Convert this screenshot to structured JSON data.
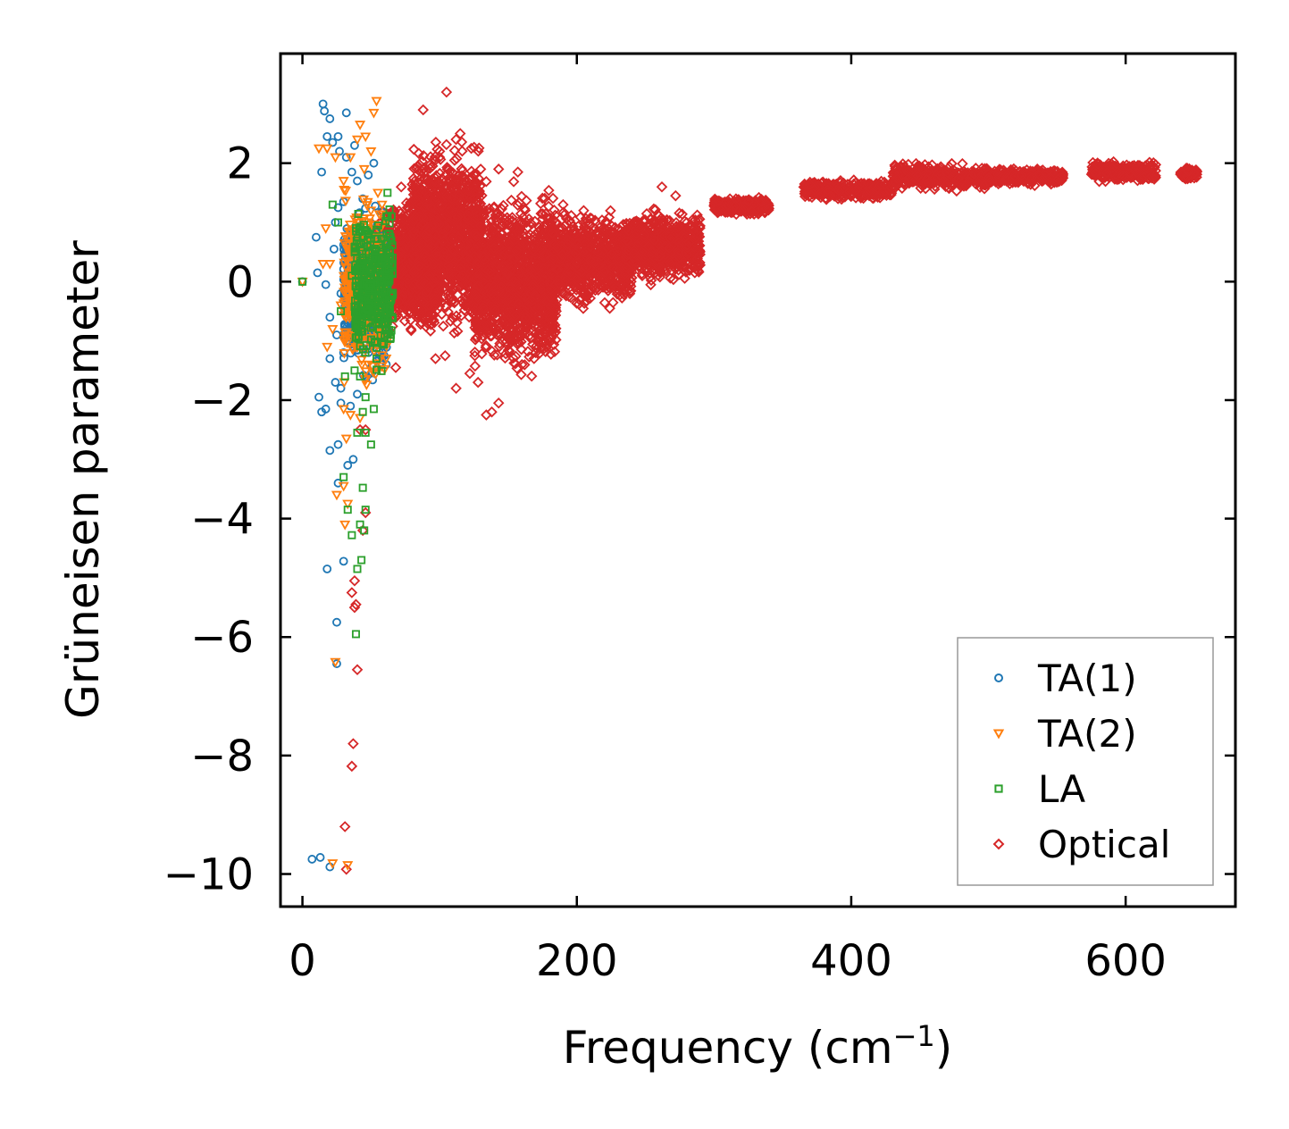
{
  "chart_data": {
    "type": "scatter",
    "title": "",
    "xlabel": "Frequency (cm",
    "xlabel_sup": "−1",
    "xlabel_suffix": ")",
    "ylabel": "Grüneisen parameter",
    "xlim": [
      -16,
      680
    ],
    "ylim": [
      -10.55,
      3.85
    ],
    "xticks": [
      0,
      200,
      400,
      600
    ],
    "xtick_labels": [
      "0",
      "200",
      "400",
      "600"
    ],
    "yticks": [
      2,
      0,
      -2,
      -4,
      -6,
      -8,
      -10
    ],
    "ytick_labels": [
      "2",
      "0",
      "−2",
      "−4",
      "−6",
      "−8",
      "−10"
    ],
    "grid": false,
    "legend_position": "lower-right",
    "series": [
      {
        "name": "TA(1)",
        "marker": "circle",
        "color": "#1f77b4",
        "points": [
          [
            0,
            0
          ],
          [
            7,
            -9.75
          ],
          [
            13,
            -9.72
          ],
          [
            20,
            -9.88
          ],
          [
            25,
            -6.45
          ],
          [
            25,
            -5.75
          ],
          [
            30,
            -4.72
          ],
          [
            18,
            -4.85
          ],
          [
            20,
            -2.85
          ],
          [
            26,
            -2.75
          ],
          [
            33,
            -3.1
          ],
          [
            37,
            -3.0
          ],
          [
            26,
            -3.4
          ],
          [
            14,
            -2.2
          ],
          [
            17,
            -2.15
          ],
          [
            12,
            -1.95
          ],
          [
            24,
            -1.7
          ],
          [
            28,
            -1.8
          ],
          [
            28,
            -2.05
          ],
          [
            20,
            -1.3
          ],
          [
            25,
            -0.9
          ],
          [
            20,
            -0.6
          ],
          [
            17,
            -0.05
          ],
          [
            11,
            0.15
          ],
          [
            10,
            0.75
          ],
          [
            14,
            1.85
          ],
          [
            18,
            2.45
          ],
          [
            22,
            2.35
          ],
          [
            20,
            2.75
          ],
          [
            15,
            3.0
          ],
          [
            16,
            2.88
          ],
          [
            26,
            2.45
          ],
          [
            32,
            2.85
          ],
          [
            27,
            2.2
          ],
          [
            32,
            2.1
          ],
          [
            38,
            2.3
          ],
          [
            36,
            1.85
          ],
          [
            40,
            1.7
          ],
          [
            24,
            1.0
          ],
          [
            23,
            0.55
          ],
          [
            33,
            0.5
          ],
          [
            35,
            0.2
          ],
          [
            28,
            -0.2
          ],
          [
            37,
            -0.85
          ],
          [
            30,
            -1.2
          ],
          [
            44,
            1.4
          ],
          [
            48,
            1.8
          ],
          [
            52,
            2.0
          ],
          [
            45,
            0.6
          ],
          [
            55,
            0.4
          ],
          [
            42,
            -0.4
          ],
          [
            50,
            -1.0
          ],
          [
            46,
            -1.6
          ],
          [
            40,
            -1.9
          ],
          [
            35,
            -2.1
          ],
          [
            30,
            1.35
          ],
          [
            40,
            1.05
          ],
          [
            26,
            1.25
          ]
        ],
        "band": {
          "x_range": [
            30,
            62
          ],
          "y_range": [
            -1.9,
            1.5
          ],
          "n": 520
        }
      },
      {
        "name": "TA(2)",
        "marker": "triangle-down",
        "color": "#ff7f0e",
        "points": [
          [
            0,
            0
          ],
          [
            33,
            -9.85
          ],
          [
            22,
            -9.82
          ],
          [
            24,
            -6.42
          ],
          [
            31,
            -4.1
          ],
          [
            33,
            -3.75
          ],
          [
            30,
            -3.45
          ],
          [
            25,
            -3.6
          ],
          [
            32,
            -2.65
          ],
          [
            35,
            -2.25
          ],
          [
            30,
            -2.15
          ],
          [
            42,
            -2.3
          ],
          [
            18,
            -1.1
          ],
          [
            22,
            -0.8
          ],
          [
            15,
            0.3
          ],
          [
            20,
            0.3
          ],
          [
            17,
            0.9
          ],
          [
            12,
            2.25
          ],
          [
            18,
            2.25
          ],
          [
            24,
            2.1
          ],
          [
            30,
            1.7
          ],
          [
            35,
            2.1
          ],
          [
            40,
            2.4
          ],
          [
            42,
            2.65
          ],
          [
            46,
            2.45
          ],
          [
            52,
            2.85
          ],
          [
            54,
            3.05
          ],
          [
            50,
            2.2
          ],
          [
            45,
            1.9
          ],
          [
            55,
            1.5
          ],
          [
            38,
            0.2
          ],
          [
            28,
            -0.4
          ],
          [
            44,
            -0.9
          ],
          [
            58,
            1.3
          ],
          [
            48,
            -1.4
          ]
        ],
        "band": {
          "x_range": [
            30,
            62
          ],
          "y_range": [
            -2.0,
            1.8
          ],
          "n": 420
        }
      },
      {
        "name": "LA",
        "marker": "square",
        "color": "#2ca02c",
        "points": [
          [
            0,
            0
          ],
          [
            39,
            -5.95
          ],
          [
            40,
            -4.85
          ],
          [
            43,
            -4.7
          ],
          [
            45,
            -4.2
          ],
          [
            36,
            -4.28
          ],
          [
            42,
            -4.1
          ],
          [
            46,
            -3.85
          ],
          [
            44,
            -3.48
          ],
          [
            33,
            -3.85
          ],
          [
            30,
            -3.3
          ],
          [
            40,
            -2.55
          ],
          [
            46,
            -2.55
          ],
          [
            50,
            -2.75
          ],
          [
            44,
            -2.2
          ],
          [
            52,
            -2.15
          ],
          [
            46,
            -1.95
          ],
          [
            42,
            -1.6
          ],
          [
            38,
            -1.5
          ],
          [
            31,
            -1.6
          ],
          [
            28,
            -0.5
          ],
          [
            22,
            1.3
          ],
          [
            26,
            1.0
          ],
          [
            62,
            1.5
          ],
          [
            58,
            0.5
          ],
          [
            48,
            0.8
          ],
          [
            54,
            -1.3
          ],
          [
            36,
            0.1
          ],
          [
            63,
            -0.3
          ],
          [
            60,
            -0.9
          ]
        ],
        "band": {
          "x_range": [
            38,
            66
          ],
          "y_range": [
            -1.6,
            1.4
          ],
          "n": 380
        }
      },
      {
        "name": "Optical",
        "marker": "diamond",
        "color": "#d62728",
        "points": [
          [
            32,
            -9.92
          ],
          [
            31,
            -9.2
          ],
          [
            36,
            -8.18
          ],
          [
            37,
            -7.8
          ],
          [
            40,
            -6.55
          ],
          [
            38,
            -5.5
          ],
          [
            36,
            -5.25
          ],
          [
            38,
            -5.05
          ],
          [
            39,
            -5.45
          ],
          [
            44,
            -4.2
          ],
          [
            46,
            -3.9
          ],
          [
            42,
            -2.5
          ],
          [
            46,
            -2.5
          ],
          [
            105,
            3.2
          ],
          [
            88,
            2.9
          ],
          [
            100,
            2.2
          ],
          [
            112,
            2.4
          ],
          [
            115,
            2.5
          ],
          [
            143,
            1.9
          ],
          [
            157,
            1.85
          ],
          [
            97,
            -1.3
          ],
          [
            104,
            -1.25
          ],
          [
            112,
            -1.8
          ],
          [
            122,
            -1.55
          ],
          [
            128,
            -1.7
          ],
          [
            134,
            -2.25
          ],
          [
            138,
            -2.2
          ],
          [
            143,
            -2.05
          ],
          [
            160,
            -1.4
          ],
          [
            170,
            -1.2
          ],
          [
            177,
            -0.8
          ],
          [
            224,
            -0.45
          ],
          [
            68,
            -1.45
          ],
          [
            72,
            1.6
          ],
          [
            262,
            1.6
          ],
          [
            272,
            1.45
          ],
          [
            82,
            1.4
          ],
          [
            190,
            1.3
          ],
          [
            205,
            1.2
          ]
        ],
        "bands": [
          {
            "x_range": [
              55,
              100
            ],
            "y_range": [
              -1.0,
              1.5
            ],
            "n": 1400
          },
          {
            "x_range": [
              80,
              130
            ],
            "y_range": [
              -1.1,
              2.6
            ],
            "n": 1300
          },
          {
            "x_range": [
              125,
              185
            ],
            "y_range": [
              -1.7,
              1.75
            ],
            "n": 1500
          },
          {
            "x_range": [
              180,
              240
            ],
            "y_range": [
              -0.55,
              1.3
            ],
            "n": 900
          },
          {
            "x_range": [
              235,
              290
            ],
            "y_range": [
              -0.1,
              1.3
            ],
            "n": 700
          },
          {
            "x_range": [
              300,
              340
            ],
            "y_range": [
              1.1,
              1.45
            ],
            "n": 280
          },
          {
            "x_range": [
              365,
              430
            ],
            "y_range": [
              1.35,
              1.75
            ],
            "n": 350
          },
          {
            "x_range": [
              430,
              500
            ],
            "y_range": [
              1.5,
              2.05
            ],
            "n": 380
          },
          {
            "x_range": [
              500,
              555
            ],
            "y_range": [
              1.6,
              1.95
            ],
            "n": 260
          },
          {
            "x_range": [
              575,
              622
            ],
            "y_range": [
              1.65,
              2.05
            ],
            "n": 260
          },
          {
            "x_range": [
              640,
              652
            ],
            "y_range": [
              1.7,
              1.95
            ],
            "n": 80
          }
        ]
      }
    ]
  }
}
